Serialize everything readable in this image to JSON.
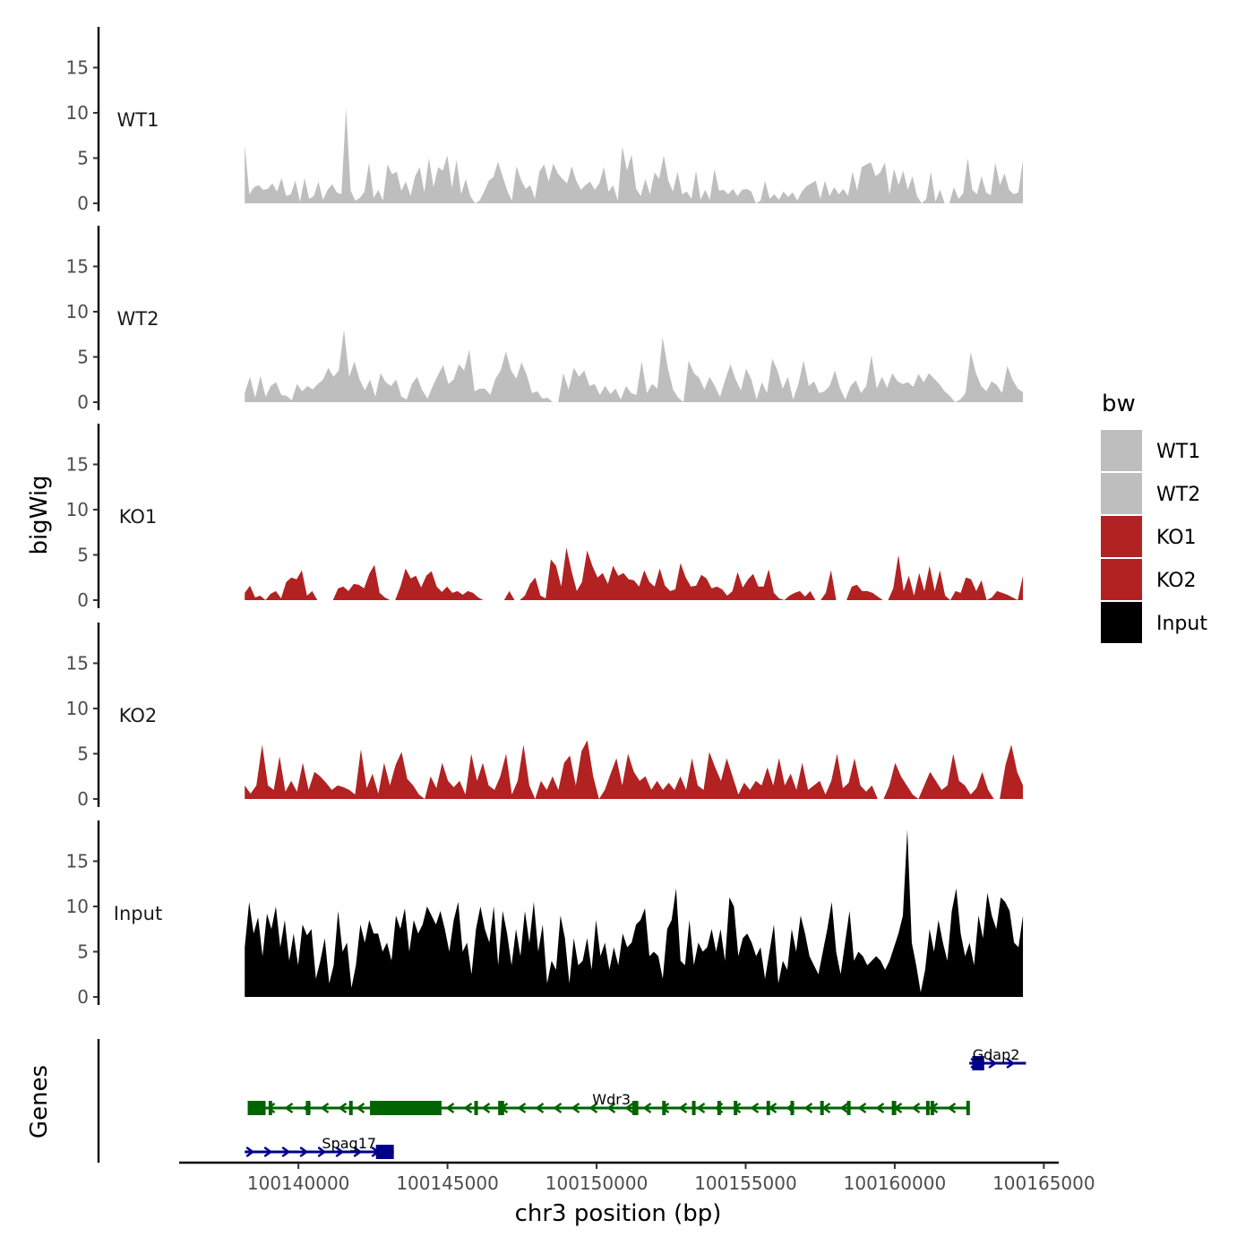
{
  "chart_data": {
    "type": "area",
    "title": "",
    "ylabel": "bigWig",
    "genes_label": "Genes",
    "xlabel": "chr3 position (bp)",
    "xlim": [
      100136000,
      100165500
    ],
    "data_range": [
      100138200,
      100164300
    ],
    "ylim": [
      0,
      19.5
    ],
    "yticks": [
      "0",
      "5",
      "10",
      "15"
    ],
    "xticks": [
      {
        "value": 100140000,
        "label": "100140000"
      },
      {
        "value": 100145000,
        "label": "100145000"
      },
      {
        "value": 100150000,
        "label": "100150000"
      },
      {
        "value": 100155000,
        "label": "100155000"
      },
      {
        "value": 100160000,
        "label": "100160000"
      },
      {
        "value": 100165000,
        "label": "100165000"
      }
    ],
    "legend": {
      "title": "bw",
      "placement": "right",
      "entries": [
        {
          "label": "WT1",
          "color": "#bebebe"
        },
        {
          "label": "WT2",
          "color": "#bebebe"
        },
        {
          "label": "KO1",
          "color": "#b22222"
        },
        {
          "label": "KO2",
          "color": "#b22222"
        },
        {
          "label": "Input",
          "color": "#000000"
        }
      ]
    },
    "tracks": [
      {
        "name": "WT1",
        "color": "#bebebe",
        "values": [
          6.5,
          1.0,
          1.8,
          2.0,
          1.5,
          1.6,
          2.2,
          1.3,
          2.8,
          0.8,
          1.0,
          2.5,
          0.2,
          2.8,
          0.5,
          0.8,
          2.4,
          0.4,
          1.5,
          2.1,
          1.2,
          1.0,
          10.5,
          1.4,
          0.3,
          0.6,
          1.3,
          4.5,
          0.6,
          1.5,
          0.3,
          4.3,
          3.2,
          3.5,
          1.4,
          2.4,
          0.8,
          3.0,
          4.0,
          1.2,
          5.0,
          1.8,
          4.0,
          3.6,
          5.3,
          1.7,
          4.8,
          1.0,
          2.7,
          0.8,
          0.0,
          0.3,
          1.3,
          2.5,
          2.9,
          4.6,
          3.0,
          1.4,
          0.3,
          4.1,
          2.6,
          1.6,
          2.0,
          0.5,
          3.5,
          4.3,
          2.4,
          4.4,
          3.3,
          2.7,
          2.2,
          4.1,
          2.5,
          1.5,
          2.0,
          2.4,
          1.5,
          2.2,
          4.0,
          1.3,
          2.0,
          0.3,
          6.3,
          3.6,
          5.4,
          1.6,
          0.8,
          2.7,
          1.0,
          3.4,
          2.7,
          5.3,
          2.5,
          1.3,
          3.5,
          1.0,
          1.3,
          0.5,
          3.6,
          0.4,
          1.5,
          0.4,
          3.8,
          1.4,
          1.5,
          1.0,
          1.6,
          0.8,
          1.5,
          1.6,
          1.3,
          0.0,
          0.3,
          2.5,
          0.5,
          1.0,
          0.4,
          1.3,
          0.7,
          1.2,
          0.3,
          1.3,
          1.9,
          2.2,
          2.5,
          0.5,
          2.5,
          0.8,
          1.8,
          1.0,
          1.6,
          0.8,
          3.5,
          1.4,
          4.0,
          4.3,
          4.5,
          3.0,
          3.4,
          4.5,
          1.0,
          3.8,
          2.0,
          3.6,
          1.5,
          3.0,
          0.8,
          0.0,
          0.5,
          3.5,
          0.2,
          1.5,
          0.0,
          0.0,
          1.8,
          0.5,
          1.1,
          5.0,
          1.5,
          1.0,
          3.0,
          1.2,
          0.9,
          4.5,
          2.0,
          3.3,
          1.5,
          1.0,
          1.2,
          4.8
        ]
      },
      {
        "name": "WT2",
        "color": "#bebebe",
        "values": [
          1.0,
          2.8,
          0.5,
          2.9,
          0.6,
          1.8,
          2.2,
          0.8,
          0.7,
          0.2,
          2.0,
          1.2,
          1.8,
          1.4,
          2.0,
          2.5,
          3.8,
          2.8,
          3.5,
          8.0,
          2.8,
          4.5,
          2.5,
          1.3,
          2.5,
          0.6,
          3.2,
          2.2,
          1.8,
          2.5,
          0.6,
          0.3,
          2.0,
          2.8,
          1.3,
          0.4,
          1.8,
          3.0,
          4.1,
          2.0,
          2.5,
          4.2,
          3.5,
          5.8,
          1.2,
          1.5,
          1.5,
          0.8,
          2.6,
          3.5,
          5.6,
          3.5,
          2.6,
          4.4,
          3.0,
          1.0,
          1.2,
          0.4,
          0.5,
          0.0,
          0.0,
          3.2,
          1.4,
          3.8,
          2.8,
          3.5,
          1.8,
          2.0,
          0.8,
          1.8,
          0.9,
          1.5,
          0.3,
          1.8,
          1.0,
          0.8,
          4.5,
          1.0,
          2.0,
          1.5,
          7.2,
          3.8,
          1.4,
          0.5,
          0.0,
          4.6,
          3.2,
          2.7,
          1.4,
          2.8,
          1.8,
          0.6,
          2.5,
          4.2,
          2.5,
          1.3,
          3.7,
          2.5,
          0.3,
          2.2,
          1.0,
          4.8,
          3.5,
          1.5,
          2.8,
          0.3,
          2.0,
          4.6,
          1.8,
          2.3,
          1.0,
          1.2,
          1.8,
          3.5,
          1.5,
          0.3,
          1.8,
          2.4,
          1.0,
          1.8,
          5.2,
          1.5,
          2.8,
          1.6,
          3.2,
          2.3,
          2.0,
          2.2,
          1.7,
          3.1,
          2.2,
          3.2,
          2.6,
          2.0,
          1.2,
          0.7,
          0.0,
          0.3,
          1.0,
          5.5,
          3.2,
          1.8,
          1.2,
          2.3,
          1.9,
          1.0,
          4.0,
          2.5,
          1.5,
          1.1
        ]
      },
      {
        "name": "KO1",
        "color": "#b22222",
        "values": [
          0.8,
          1.6,
          0.3,
          0.5,
          0.0,
          0.7,
          1.0,
          0.2,
          2.0,
          2.5,
          2.3,
          3.3,
          0.5,
          1.0,
          0.0,
          0.0,
          0.0,
          0.0,
          1.3,
          1.5,
          1.0,
          1.8,
          1.7,
          1.3,
          2.9,
          3.9,
          0.8,
          0.3,
          0.0,
          0.0,
          1.5,
          3.5,
          2.4,
          2.7,
          1.4,
          2.7,
          3.2,
          1.5,
          0.9,
          1.5,
          0.8,
          1.0,
          0.6,
          1.0,
          0.8,
          0.3,
          0.0,
          0.0,
          0.0,
          0.0,
          0.0,
          1.0,
          0.0,
          0.0,
          0.5,
          1.8,
          2.5,
          0.5,
          0.2,
          4.5,
          3.8,
          1.5,
          5.8,
          3.2,
          1.0,
          2.0,
          5.5,
          3.8,
          2.5,
          3.0,
          1.8,
          3.8,
          2.7,
          3.0,
          2.3,
          2.2,
          1.5,
          3.3,
          2.0,
          1.5,
          3.5,
          1.6,
          1.0,
          1.2,
          4.1,
          2.5,
          1.5,
          1.6,
          2.8,
          2.4,
          1.3,
          1.5,
          1.2,
          0.5,
          1.0,
          3.1,
          1.4,
          2.3,
          2.9,
          1.5,
          1.5,
          3.4,
          0.8,
          0.2,
          0.0,
          0.5,
          0.8,
          1.0,
          0.4,
          1.0,
          0.0,
          0.0,
          0.8,
          3.3,
          0.0,
          0.0,
          0.0,
          1.5,
          1.7,
          1.0,
          1.0,
          0.8,
          0.4,
          0.0,
          0.0,
          1.3,
          5.0,
          1.0,
          2.7,
          0.5,
          3.0,
          1.0,
          3.8,
          1.0,
          3.3,
          0.5,
          0.0,
          1.0,
          0.8,
          2.5,
          2.3,
          1.0,
          2.2,
          0.0,
          0.3,
          1.0,
          0.8,
          0.6,
          0.3,
          0.0,
          2.7
        ]
      },
      {
        "name": "KO2",
        "color": "#b22222",
        "values": [
          1.5,
          0.6,
          1.5,
          6.0,
          1.5,
          1.0,
          4.7,
          0.8,
          2.0,
          0.8,
          4.0,
          1.0,
          3.0,
          2.5,
          1.8,
          1.0,
          1.5,
          1.3,
          1.0,
          0.5,
          5.5,
          1.2,
          2.8,
          0.6,
          4.0,
          1.5,
          3.8,
          5.2,
          2.2,
          1.5,
          0.5,
          0.0,
          2.5,
          1.2,
          4.0,
          2.0,
          1.3,
          2.0,
          0.5,
          5.0,
          2.0,
          4.0,
          1.5,
          1.0,
          2.5,
          5.0,
          0.5,
          2.0,
          6.0,
          1.5,
          0.0,
          2.0,
          1.0,
          2.5,
          1.0,
          4.0,
          4.8,
          1.5,
          5.3,
          6.5,
          2.5,
          0.0,
          1.0,
          2.8,
          4.5,
          1.5,
          5.0,
          3.0,
          2.0,
          2.5,
          1.0,
          2.0,
          1.0,
          1.8,
          1.0,
          2.5,
          1.0,
          4.5,
          1.5,
          1.0,
          5.2,
          3.5,
          2.0,
          4.5,
          2.5,
          0.5,
          1.8,
          1.0,
          2.0,
          1.5,
          3.5,
          1.5,
          4.5,
          1.5,
          2.8,
          1.0,
          4.0,
          1.0,
          1.5,
          2.0,
          0.5,
          2.0,
          5.0,
          1.2,
          1.8,
          4.5,
          1.5,
          0.8,
          1.5,
          0.0,
          0.0,
          1.5,
          4.0,
          2.5,
          1.5,
          0.5,
          0.0,
          1.5,
          3.0,
          2.0,
          1.0,
          1.5,
          5.0,
          2.0,
          1.5,
          0.5,
          1.2,
          3.0,
          1.0,
          0.0,
          0.0,
          3.8,
          6.0,
          3.0,
          1.5
        ]
      },
      {
        "name": "Input",
        "color": "#000000",
        "values": [
          5.5,
          10.5,
          7.0,
          8.8,
          4.5,
          9.2,
          7.5,
          10.0,
          5.5,
          8.5,
          4.0,
          7.0,
          3.5,
          8.0,
          6.8,
          7.5,
          2.0,
          4.0,
          6.5,
          1.5,
          3.5,
          9.5,
          5.0,
          6.0,
          1.0,
          3.5,
          8.0,
          6.0,
          8.5,
          7.0,
          7.0,
          5.0,
          6.0,
          4.0,
          9.0,
          7.5,
          9.8,
          5.0,
          8.5,
          7.0,
          8.0,
          10.0,
          9.0,
          8.0,
          9.5,
          7.5,
          5.0,
          8.5,
          10.5,
          5.0,
          6.0,
          2.5,
          7.5,
          10.0,
          7.5,
          6.0,
          10.0,
          3.5,
          9.5,
          7.0,
          3.5,
          7.5,
          4.5,
          9.5,
          6.0,
          10.5,
          5.0,
          8.0,
          1.5,
          4.0,
          3.0,
          9.0,
          6.5,
          1.5,
          6.5,
          3.5,
          4.0,
          6.5,
          3.0,
          8.5,
          4.5,
          6.0,
          3.0,
          5.5,
          3.5,
          7.0,
          5.5,
          6.0,
          8.0,
          8.5,
          9.8,
          4.5,
          5.0,
          4.5,
          2.0,
          7.5,
          8.5,
          12.0,
          4.0,
          3.5,
          8.5,
          3.5,
          6.0,
          5.0,
          5.5,
          7.5,
          5.0,
          7.5,
          4.0,
          11.0,
          10.0,
          4.5,
          6.5,
          7.0,
          6.0,
          4.5,
          5.5,
          2.0,
          5.0,
          8.0,
          1.5,
          4.0,
          3.0,
          7.5,
          5.0,
          9.0,
          7.0,
          4.5,
          3.5,
          2.5,
          5.0,
          7.5,
          10.5,
          5.0,
          2.5,
          6.0,
          9.5,
          4.0,
          5.0,
          4.5,
          3.5,
          4.0,
          4.5,
          4.0,
          3.0,
          4.0,
          5.5,
          7.0,
          9.0,
          18.5,
          6.0,
          3.5,
          0.5,
          3.0,
          7.5,
          5.0,
          8.5,
          6.0,
          4.0,
          9.5,
          12.0,
          7.0,
          4.5,
          6.0,
          3.5,
          9.0,
          6.5,
          11.5,
          9.0,
          7.5,
          11.0,
          10.5,
          9.5,
          6.0,
          5.5,
          9.0
        ]
      }
    ],
    "genes": [
      {
        "name": "Gdap2",
        "strand": "+",
        "color": "#00008b",
        "start": 100162500,
        "end": 100164400,
        "row": 1,
        "exons": [
          [
            100162600,
            100163000
          ]
        ]
      },
      {
        "name": "Wdr3",
        "strand": "-",
        "color": "#006400",
        "start": 100138300,
        "end": 100162500,
        "row": 2,
        "exons": [
          [
            100138300,
            100138900
          ],
          [
            100139000,
            100139120
          ],
          [
            100140250,
            100140400
          ],
          [
            100141700,
            100141780
          ],
          [
            100142400,
            100144800
          ],
          [
            100145900,
            100146000
          ],
          [
            100146700,
            100146900
          ],
          [
            100151200,
            100151400
          ],
          [
            100152200,
            100152300
          ],
          [
            100153200,
            100153300
          ],
          [
            100154050,
            100154150
          ],
          [
            100154600,
            100154700
          ],
          [
            100155700,
            100155800
          ],
          [
            100156500,
            100156600
          ],
          [
            100157500,
            100157600
          ],
          [
            100158400,
            100158500
          ],
          [
            100159900,
            100160050
          ],
          [
            100161050,
            100161150
          ],
          [
            100161200,
            100161300
          ],
          [
            100162400,
            100162500
          ]
        ]
      },
      {
        "name": "Spag17",
        "strand": "+",
        "color": "#00008b",
        "start": 100138200,
        "end": 100143200,
        "row": 3,
        "exons": [
          [
            100142600,
            100143200
          ]
        ]
      }
    ]
  }
}
